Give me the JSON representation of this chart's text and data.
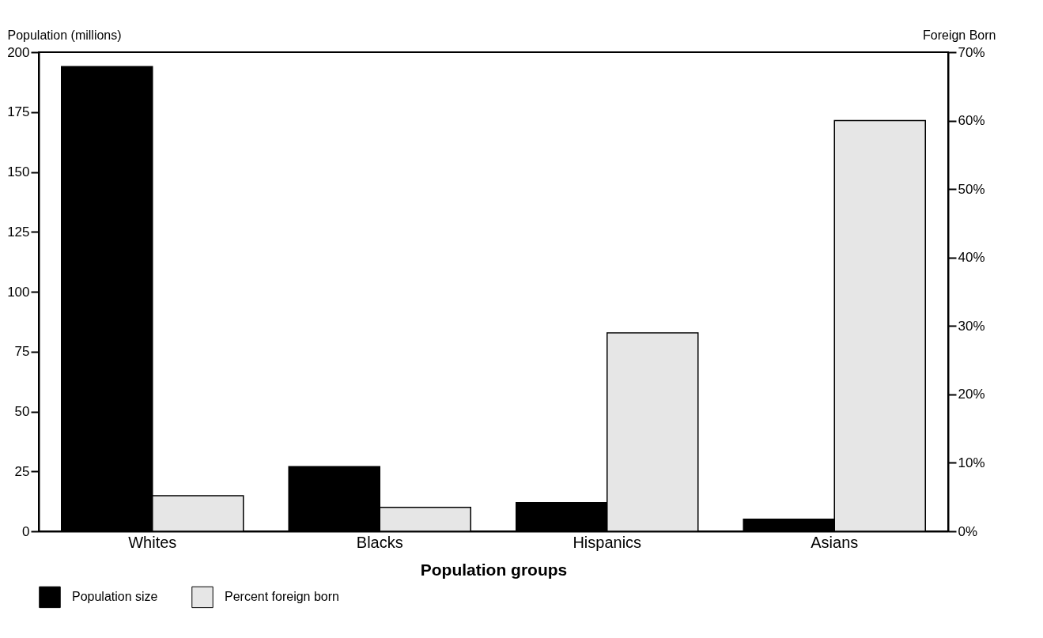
{
  "chart_data": {
    "type": "bar",
    "xlabel": "Population groups",
    "ylabel": "Population (millions)",
    "y2label": "Foreign Born",
    "categories": [
      "Whites",
      "Blacks",
      "Hispanics",
      "Asians"
    ],
    "series": [
      {
        "name": "Population size",
        "color": "#000000",
        "values": [
          194,
          27,
          12,
          5
        ]
      },
      {
        "name": "Percent foreign born",
        "color": "#e6e6e6",
        "axis": "y2",
        "values": [
          5.2,
          3.5,
          29,
          60
        ]
      }
    ],
    "ylim": [
      0,
      200
    ],
    "yticks": [
      0,
      25,
      50,
      75,
      100,
      125,
      150,
      175,
      200
    ],
    "y2lim": [
      0,
      70
    ],
    "y2ticks": [
      {
        "value": 0,
        "label": "0%"
      },
      {
        "value": 10,
        "label": "10%"
      },
      {
        "value": 20,
        "label": "20%"
      },
      {
        "value": 30,
        "label": "30%"
      },
      {
        "value": 40,
        "label": "40%"
      },
      {
        "value": 50,
        "label": "50%"
      },
      {
        "value": 60,
        "label": "60%"
      },
      {
        "value": 70,
        "label": "70%"
      }
    ],
    "grid": false,
    "legend": "bottom"
  }
}
